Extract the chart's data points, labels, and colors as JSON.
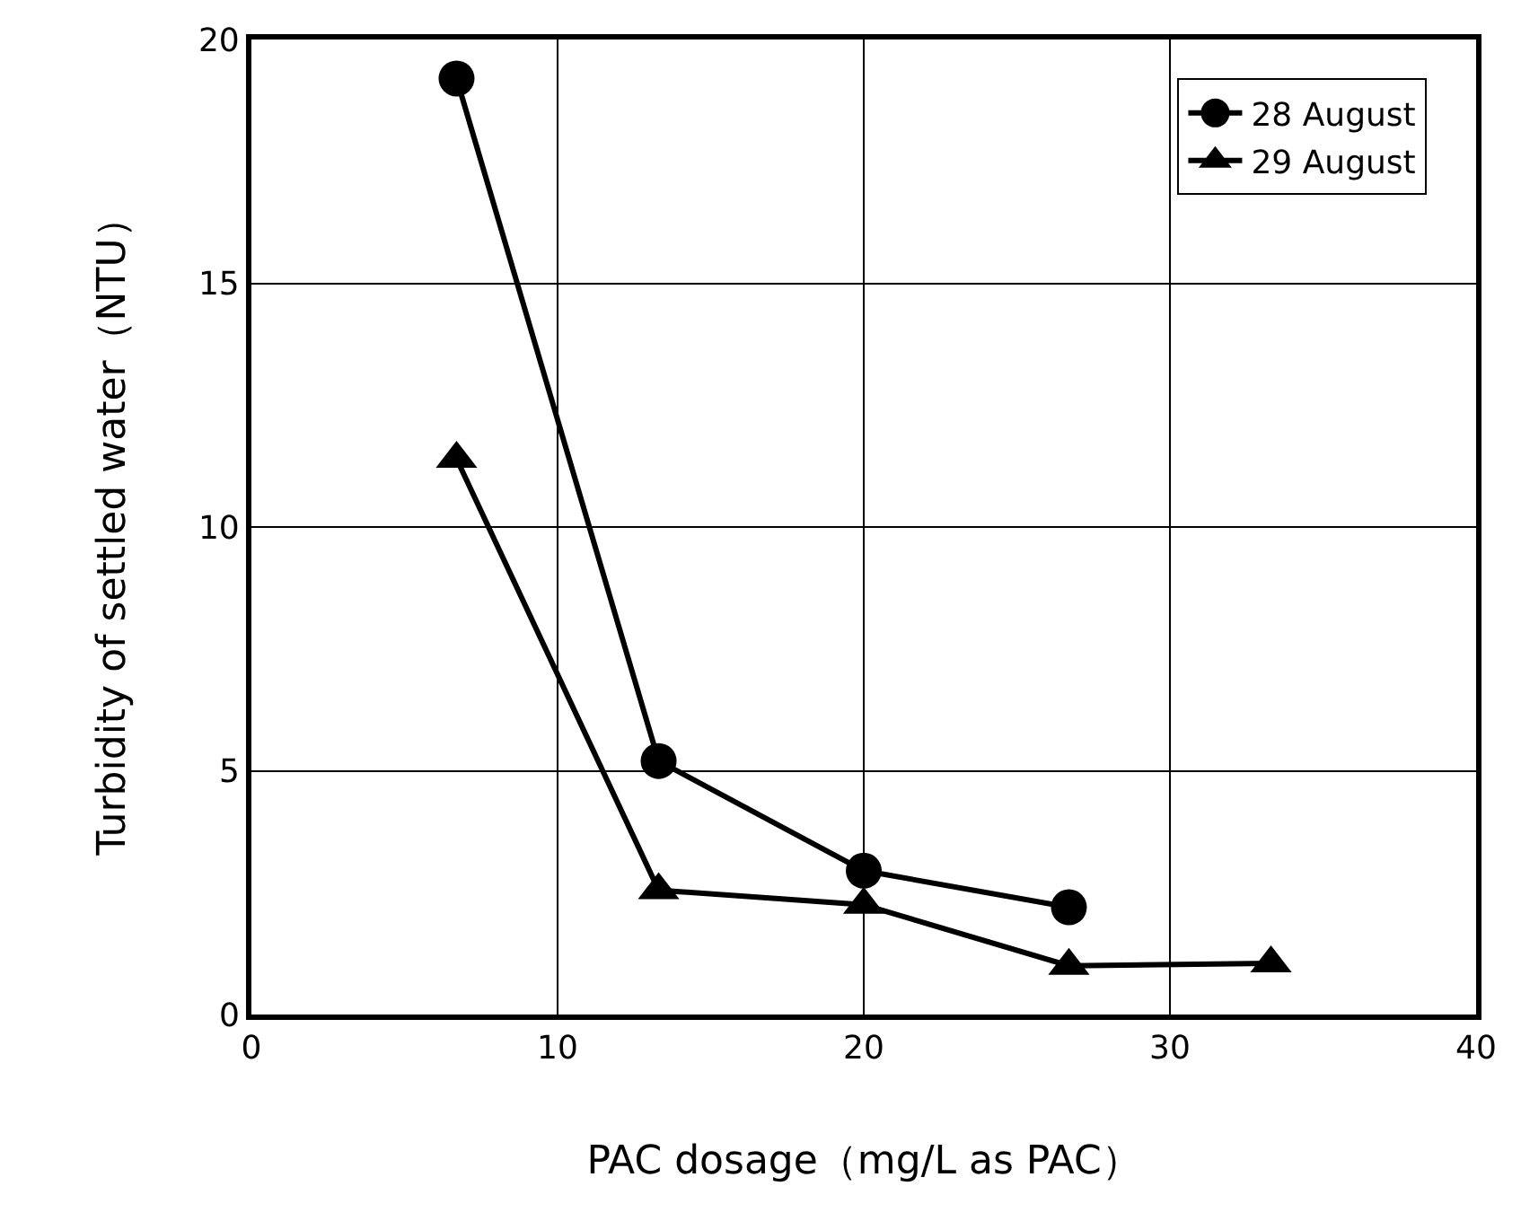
{
  "chart_data": {
    "type": "line",
    "xlabel": "PAC dosage（mg/L as PAC）",
    "ylabel": "Turbidity of settled water（NTU）",
    "xlim": [
      0,
      40
    ],
    "xticks": [
      0,
      10,
      20,
      30,
      40
    ],
    "ylim": [
      0,
      20
    ],
    "yticks": [
      0,
      5,
      10,
      15,
      20
    ],
    "grid": true,
    "legend": "top right",
    "line_style": "solid",
    "series": [
      {
        "name": "28 August",
        "color": "#000000",
        "marker": "circle",
        "x": [
          6.7,
          13.3,
          20.0,
          26.7
        ],
        "values": [
          19.2,
          5.2,
          2.95,
          2.2
        ]
      },
      {
        "name": "29 August",
        "color": "#000000",
        "marker": "triangle",
        "x": [
          6.7,
          13.3,
          20.0,
          26.7,
          33.3
        ],
        "values": [
          11.4,
          2.55,
          2.25,
          1.0,
          1.05
        ]
      }
    ]
  }
}
